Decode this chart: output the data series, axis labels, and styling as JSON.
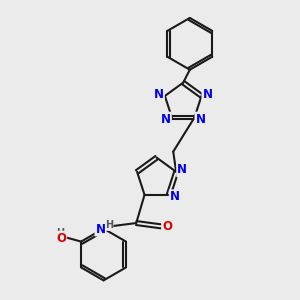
{
  "bg_color": "#ebebeb",
  "bond_color": "#1a1a1a",
  "bond_width": 1.5,
  "atom_colors": {
    "N": "#0000ee",
    "O": "#dd0000",
    "C": "#1a1a1a",
    "H": "#555555"
  },
  "font_size_atom": 8.5,
  "fig_w": 3.0,
  "fig_h": 3.0,
  "dpi": 100
}
